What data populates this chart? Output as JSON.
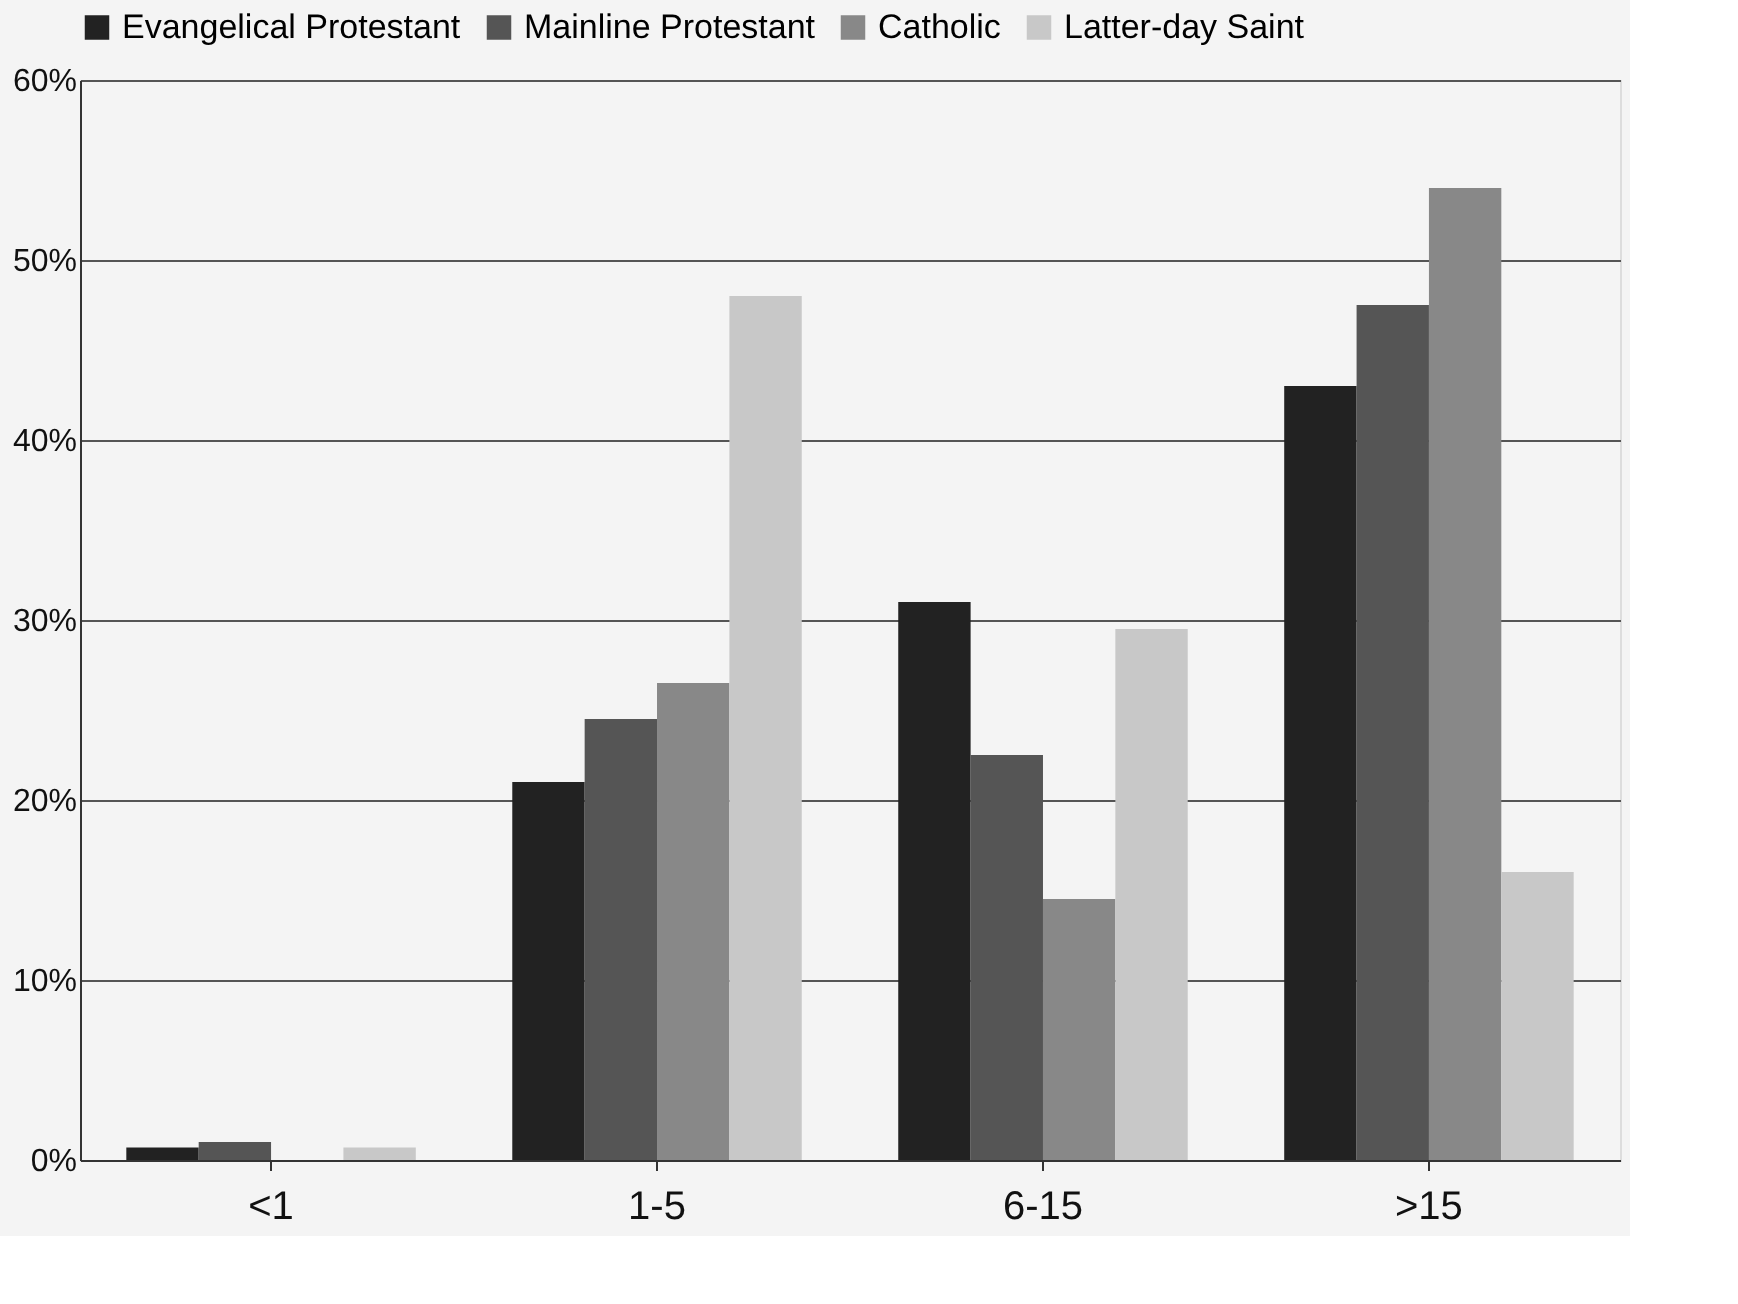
{
  "chart_data": {
    "type": "bar",
    "categories": [
      "<1",
      "1-5",
      "6-15",
      ">15"
    ],
    "series": [
      {
        "name": "Evangelical Protestant",
        "color": "#222222",
        "values": [
          0.7,
          21,
          31,
          43
        ]
      },
      {
        "name": "Mainline Protestant",
        "color": "#555555",
        "values": [
          1,
          24.5,
          22.5,
          47.5
        ]
      },
      {
        "name": "Catholic",
        "color": "#888888",
        "values": [
          0,
          26.5,
          14.5,
          54
        ]
      },
      {
        "name": "Latter-day Saint",
        "color": "#c8c8c8",
        "values": [
          0.7,
          48,
          29.5,
          16
        ]
      }
    ],
    "ylim": [
      0,
      60
    ],
    "yticks": [
      {
        "value": 0,
        "label": "0%"
      },
      {
        "value": 10,
        "label": "10%"
      },
      {
        "value": 20,
        "label": "20%"
      },
      {
        "value": 30,
        "label": "30%"
      },
      {
        "value": 40,
        "label": "40%"
      },
      {
        "value": 50,
        "label": "50%"
      },
      {
        "value": 60,
        "label": "60%"
      }
    ],
    "grid": "y",
    "legend": "top"
  }
}
